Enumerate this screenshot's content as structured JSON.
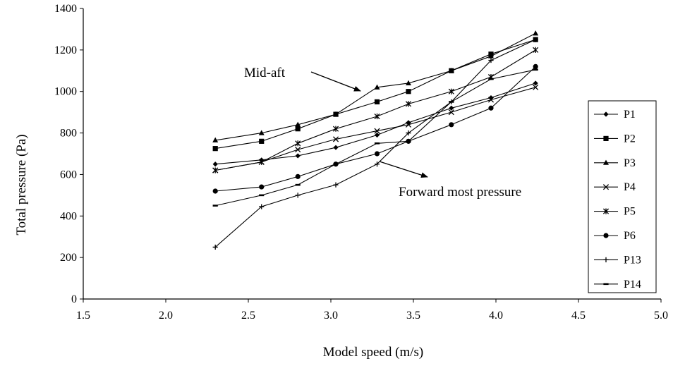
{
  "chart_data": {
    "type": "line",
    "title": "",
    "xlabel": "Model speed (m/s)",
    "ylabel": "Total pressure (Pa)",
    "xlim": [
      1.5,
      5.0
    ],
    "ylim": [
      0,
      1400
    ],
    "xticks": [
      1.5,
      2.0,
      2.5,
      3.0,
      3.5,
      4.0,
      4.5,
      5.0
    ],
    "xtick_labels": [
      "1.5",
      "2.0",
      "2.5",
      "3.0",
      "3.5",
      "4.0",
      "4.5",
      "5.0"
    ],
    "yticks": [
      0,
      200,
      400,
      600,
      800,
      1000,
      1200,
      1400
    ],
    "ytick_labels": [
      "0",
      "200",
      "400",
      "600",
      "800",
      "1000",
      "1200",
      "1400"
    ],
    "grid": false,
    "legend_position": "right",
    "x": [
      2.3,
      2.58,
      2.8,
      3.03,
      3.28,
      3.47,
      3.73,
      3.97,
      4.24
    ],
    "series": [
      {
        "name": "P1",
        "marker": "diamond",
        "values": [
          650,
          670,
          690,
          730,
          790,
          850,
          920,
          970,
          1040
        ]
      },
      {
        "name": "P2",
        "marker": "square",
        "values": [
          725,
          760,
          820,
          890,
          950,
          1000,
          1100,
          1180,
          1250
        ]
      },
      {
        "name": "P3",
        "marker": "triangle",
        "values": [
          765,
          800,
          840,
          890,
          1020,
          1040,
          1100,
          1170,
          1280
        ]
      },
      {
        "name": "P4",
        "marker": "x",
        "values": [
          620,
          660,
          720,
          770,
          810,
          840,
          900,
          960,
          1020
        ]
      },
      {
        "name": "P5",
        "marker": "asterisk",
        "values": [
          620,
          660,
          750,
          820,
          880,
          940,
          1000,
          1070,
          1200
        ]
      },
      {
        "name": "P6",
        "marker": "circle",
        "values": [
          520,
          540,
          590,
          650,
          700,
          760,
          840,
          920,
          1120
        ]
      },
      {
        "name": "P13",
        "marker": "plus",
        "values": [
          250,
          445,
          500,
          550,
          650,
          800,
          950,
          1150,
          1250
        ]
      },
      {
        "name": "P14",
        "marker": "dash",
        "values": [
          450,
          500,
          550,
          650,
          750,
          760,
          950,
          1060,
          1105
        ]
      }
    ],
    "annotations": [
      {
        "text": "Mid-aft",
        "arrow_to": {
          "x": 3.18,
          "y": 1000
        }
      },
      {
        "text": "Forward most pressure",
        "arrow_from": {
          "x": 3.32,
          "y": 700
        }
      }
    ]
  }
}
